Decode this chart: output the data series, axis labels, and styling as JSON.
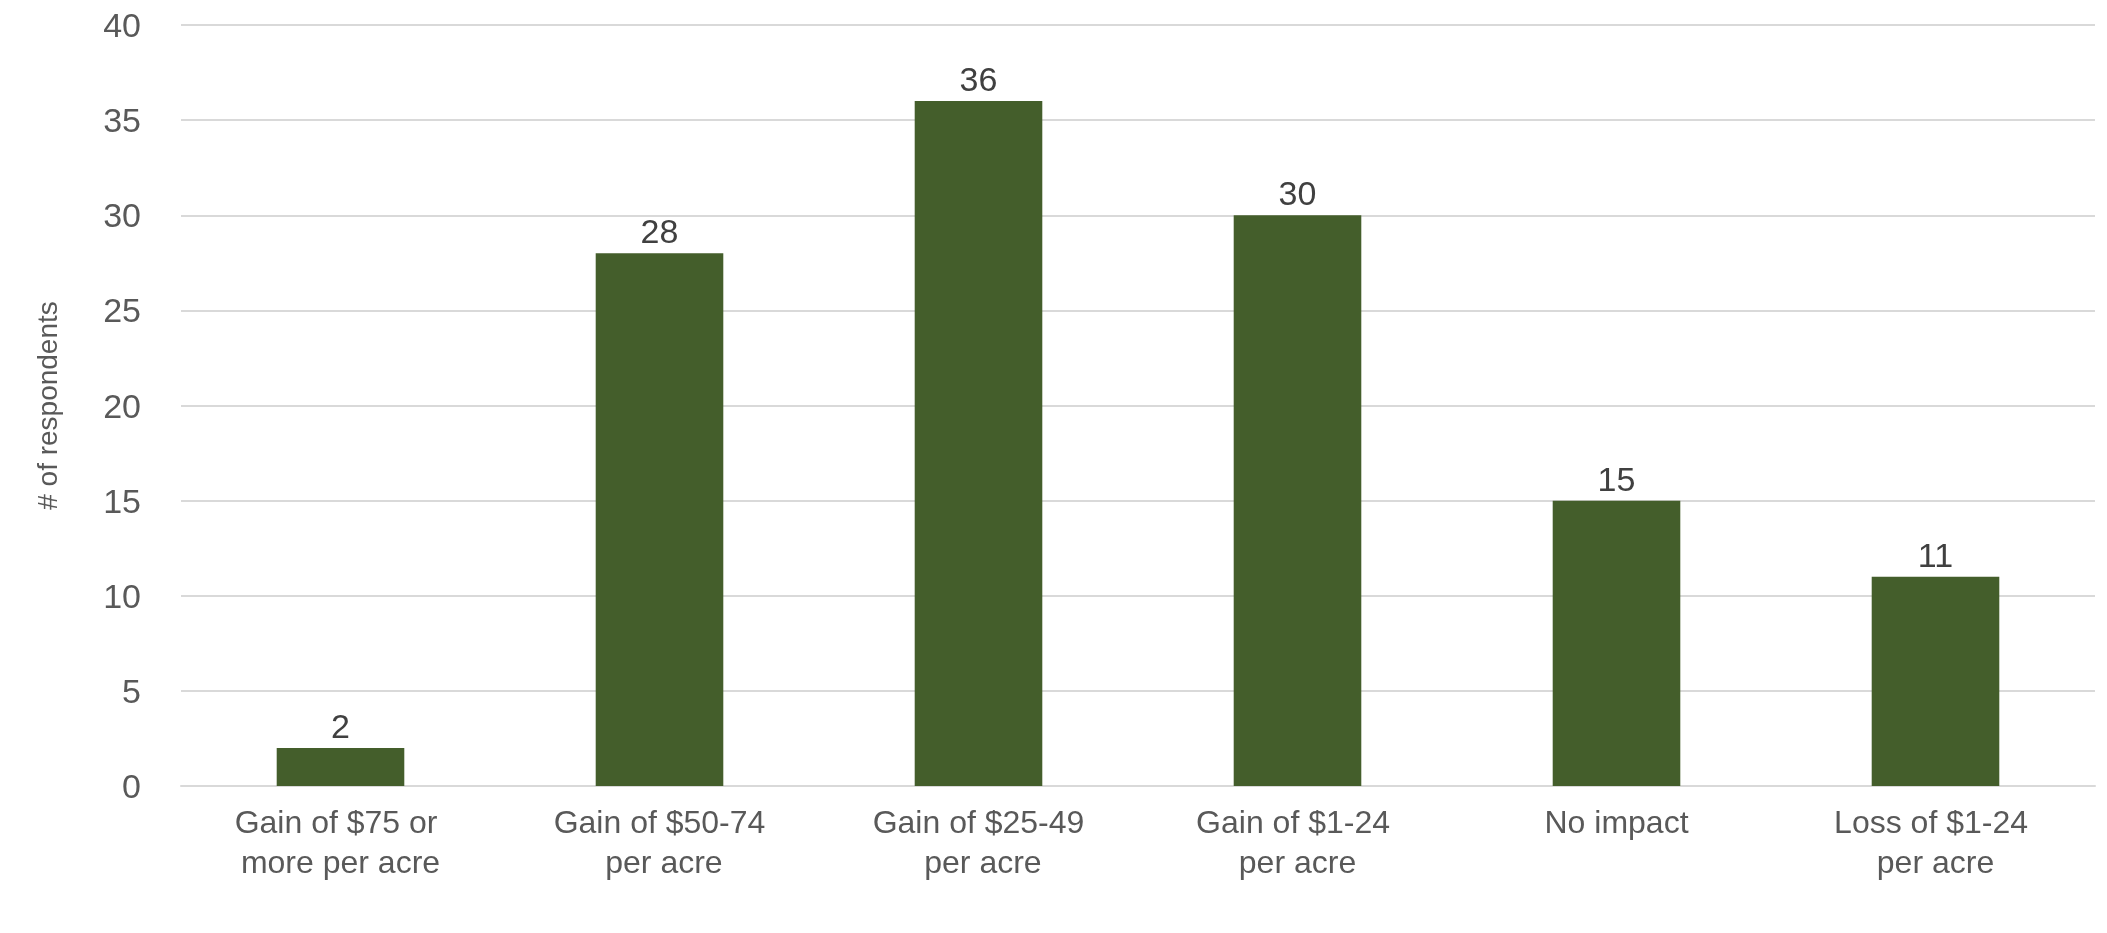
{
  "chart_data": {
    "type": "bar",
    "ylabel": "# of respondents",
    "categories": [
      "Gain of $75 or more per acre",
      "Gain of $50-74 per acre",
      "Gain of $25-49 per acre",
      "Gain of $1-24 per acre",
      "No impact",
      "Loss of $1-24 per acre"
    ],
    "values": [
      2,
      28,
      36,
      30,
      15,
      11
    ],
    "color": "#445e2b",
    "ylim": [
      0,
      40
    ],
    "yticks": [
      0,
      5,
      10,
      15,
      20,
      25,
      30,
      35,
      40
    ],
    "grid": "y",
    "data_labels": true
  }
}
